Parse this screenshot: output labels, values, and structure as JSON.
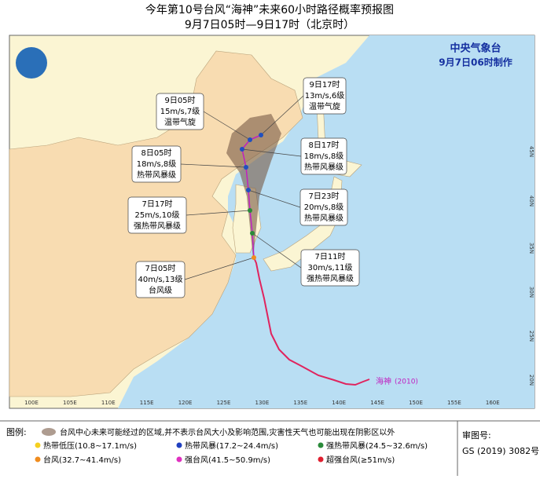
{
  "header": {
    "title": "今年第10号台风“海神”未来60小时路径概率预报图",
    "subtitle": "9月7日05时—9日17时（北京时）"
  },
  "agency": {
    "name": "中央气象台",
    "issued": "9月7日06时制作"
  },
  "typhoon": {
    "name": "海神",
    "code": "(2010)"
  },
  "forecasts": [
    {
      "time": "9日17时",
      "wind": "13m/s,6级",
      "class": "温带气旋"
    },
    {
      "time": "9日05时",
      "wind": "15m/s,7级",
      "class": "温带气旋"
    },
    {
      "time": "8日17时",
      "wind": "18m/s,8级",
      "class": "热带风暴级"
    },
    {
      "time": "8日05时",
      "wind": "18m/s,8级",
      "class": "热带风暴级"
    },
    {
      "time": "7日23时",
      "wind": "20m/s,8级",
      "class": "热带风暴级"
    },
    {
      "time": "7日17时",
      "wind": "25m/s,10级",
      "class": "强热带风暴级"
    },
    {
      "time": "7日11时",
      "wind": "30m/s,11级",
      "class": "强热带风暴级"
    },
    {
      "time": "7日05时",
      "wind": "40m/s,13级",
      "class": "台风级"
    }
  ],
  "lon_ticks": [
    "100E",
    "105E",
    "110E",
    "115E",
    "120E",
    "125E",
    "130E",
    "135E",
    "140E",
    "145E",
    "150E",
    "155E",
    "160E"
  ],
  "lat_ticks": [
    "20N",
    "25N",
    "30N",
    "35N",
    "40N",
    "45N"
  ],
  "legend": {
    "title": "图例:",
    "cone": "台风中心未来可能经过的区域,并不表示台风大小及影响范围,灾害性天气也可能出现在阴影区以外",
    "levels": [
      "热带低压(10.8~17.1m/s)",
      "热带风暴(17.2~24.4m/s)",
      "强热带风暴(24.5~32.6m/s)",
      "台风(32.7~41.4m/s)",
      "强台风(41.5~50.9m/s)",
      "超强台风(≥51m/s)"
    ]
  },
  "approval": {
    "label": "审图号:",
    "number": "GS (2019) 3082号"
  }
}
